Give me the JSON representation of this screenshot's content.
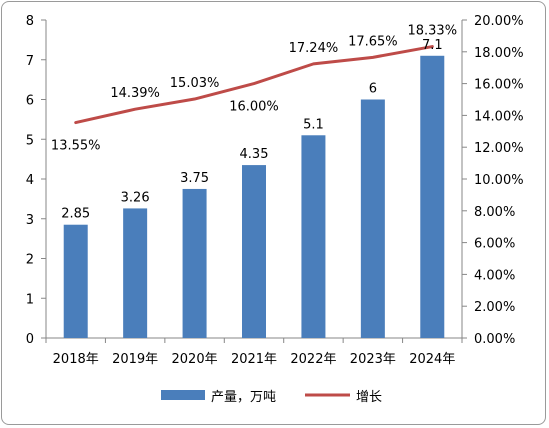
{
  "chart_data": {
    "type": "bar+line",
    "categories": [
      "2018年",
      "2019年",
      "2020年",
      "2021年",
      "2022年",
      "2023年",
      "2024年"
    ],
    "series": [
      {
        "name": "产量，万吨",
        "type": "bar",
        "axis": "left",
        "color": "#4a7ebb",
        "values": [
          2.85,
          3.26,
          3.75,
          4.35,
          5.1,
          6,
          7.1
        ],
        "labels": [
          "2.85",
          "3.26",
          "3.75",
          "4.35",
          "5.1",
          "6",
          "7.1"
        ]
      },
      {
        "name": "增长",
        "type": "line",
        "axis": "right",
        "color": "#be4b48",
        "values": [
          13.55,
          14.39,
          15.03,
          16.0,
          17.24,
          17.65,
          18.33
        ],
        "labels": [
          "13.55%",
          "14.39%",
          "15.03%",
          "16.00%",
          "17.24%",
          "17.65%",
          "18.33%"
        ]
      }
    ],
    "y_left": {
      "min": 0,
      "max": 8,
      "ticks": [
        0,
        1,
        2,
        3,
        4,
        5,
        6,
        7,
        8
      ],
      "tick_labels": [
        "0",
        "1",
        "2",
        "3",
        "4",
        "5",
        "6",
        "7",
        "8"
      ]
    },
    "y_right": {
      "min": 0,
      "max": 20,
      "ticks": [
        0,
        2,
        4,
        6,
        8,
        10,
        12,
        14,
        16,
        18,
        20
      ],
      "tick_labels": [
        "0.00%",
        "2.00%",
        "4.00%",
        "6.00%",
        "8.00%",
        "10.00%",
        "12.00%",
        "14.00%",
        "16.00%",
        "18.00%",
        "20.00%"
      ]
    },
    "grid": false,
    "legend_position": "bottom"
  }
}
